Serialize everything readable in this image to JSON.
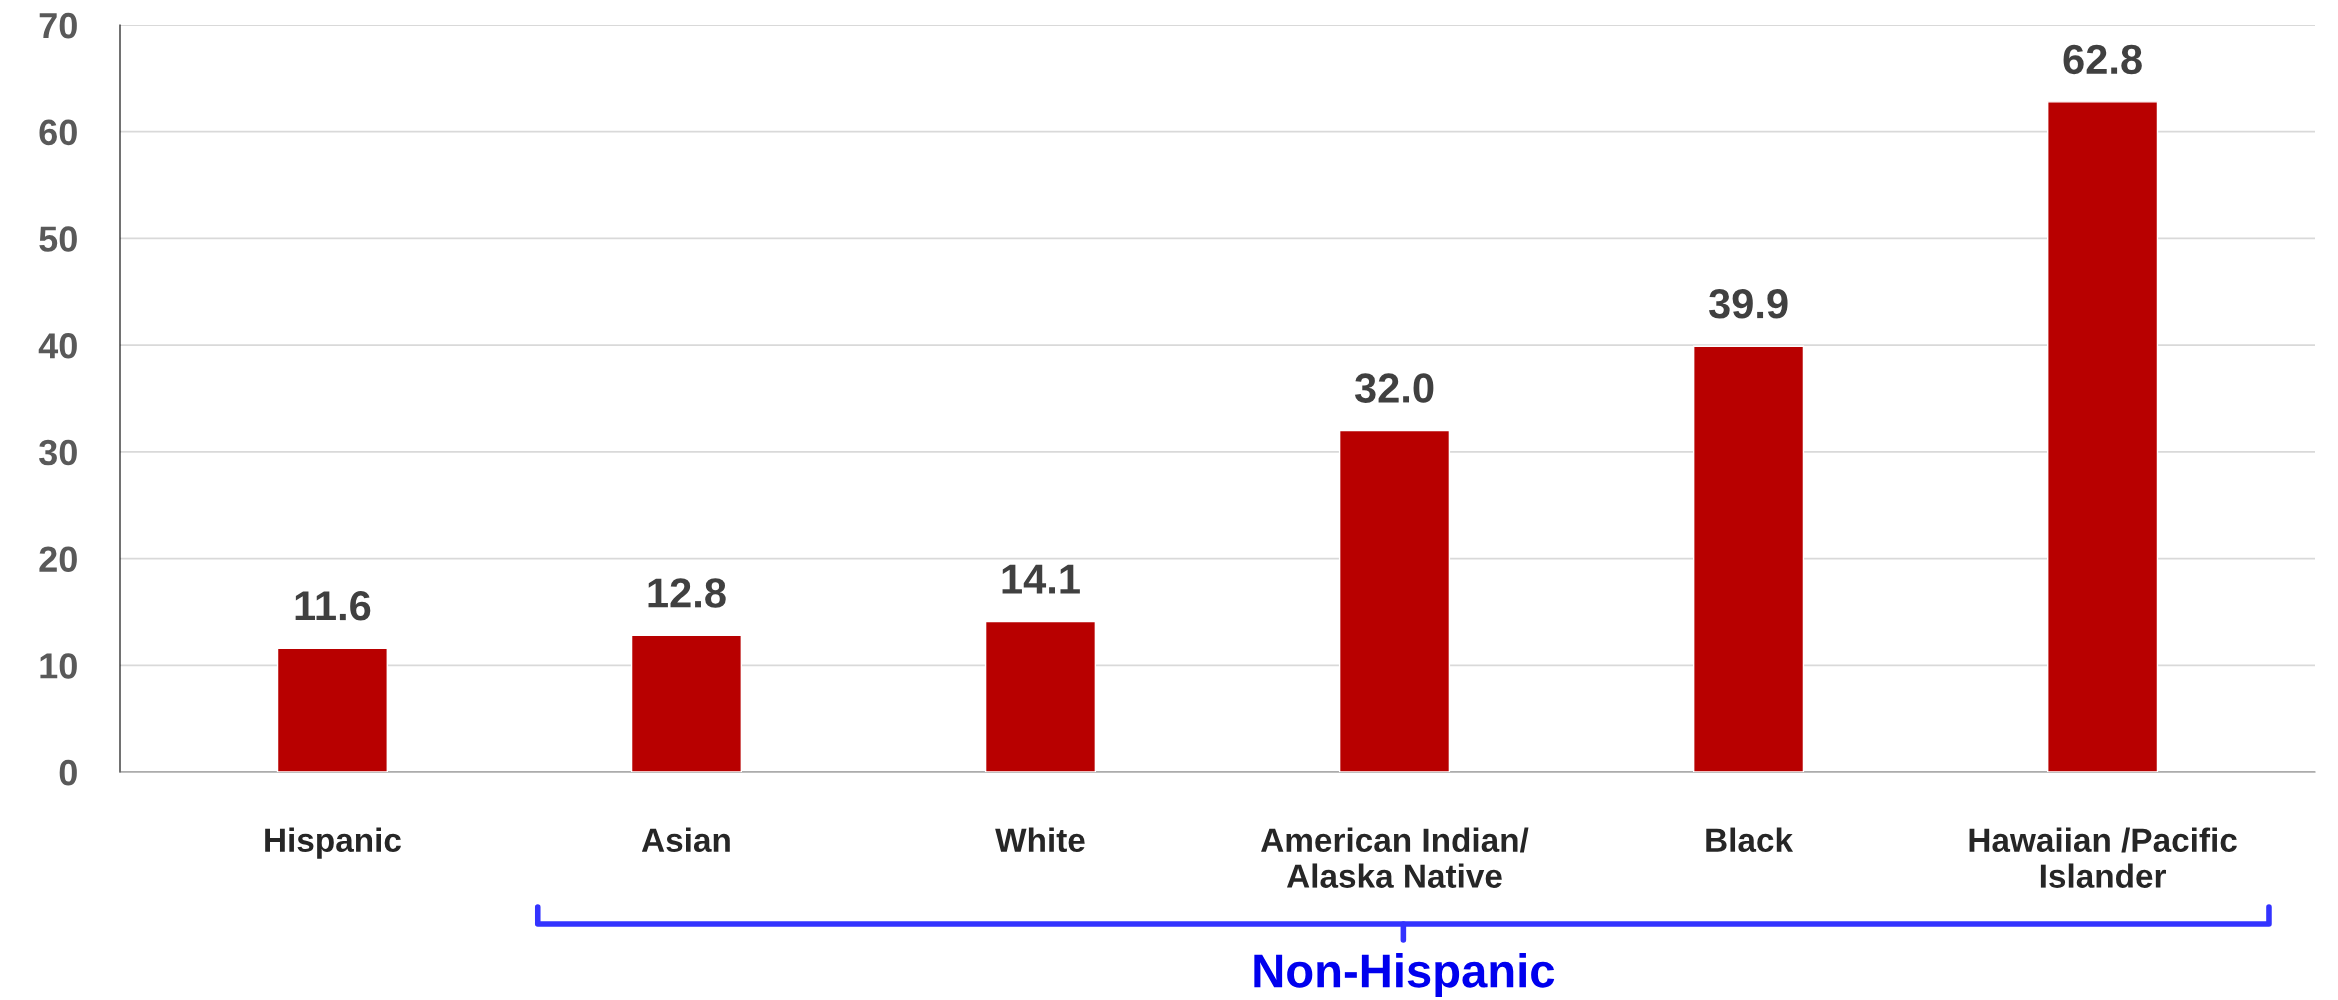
{
  "chart_data": {
    "type": "bar",
    "categories": [
      "Hispanic",
      "Asian",
      "White",
      "American Indian/\nAlaska Native",
      "Black",
      "Hawaiian /Pacific\nIslander"
    ],
    "values": [
      11.6,
      12.8,
      14.1,
      32.0,
      39.9,
      62.8
    ],
    "value_labels": [
      "11.6",
      "12.8",
      "14.1",
      "32.0",
      "39.9",
      "62.8"
    ],
    "color": "#b80000",
    "ylim": [
      0,
      70
    ],
    "yticks": [
      0,
      10,
      20,
      30,
      40,
      50,
      60,
      70
    ],
    "grid": "y",
    "annotations": [
      "Non-Hispanic"
    ]
  }
}
